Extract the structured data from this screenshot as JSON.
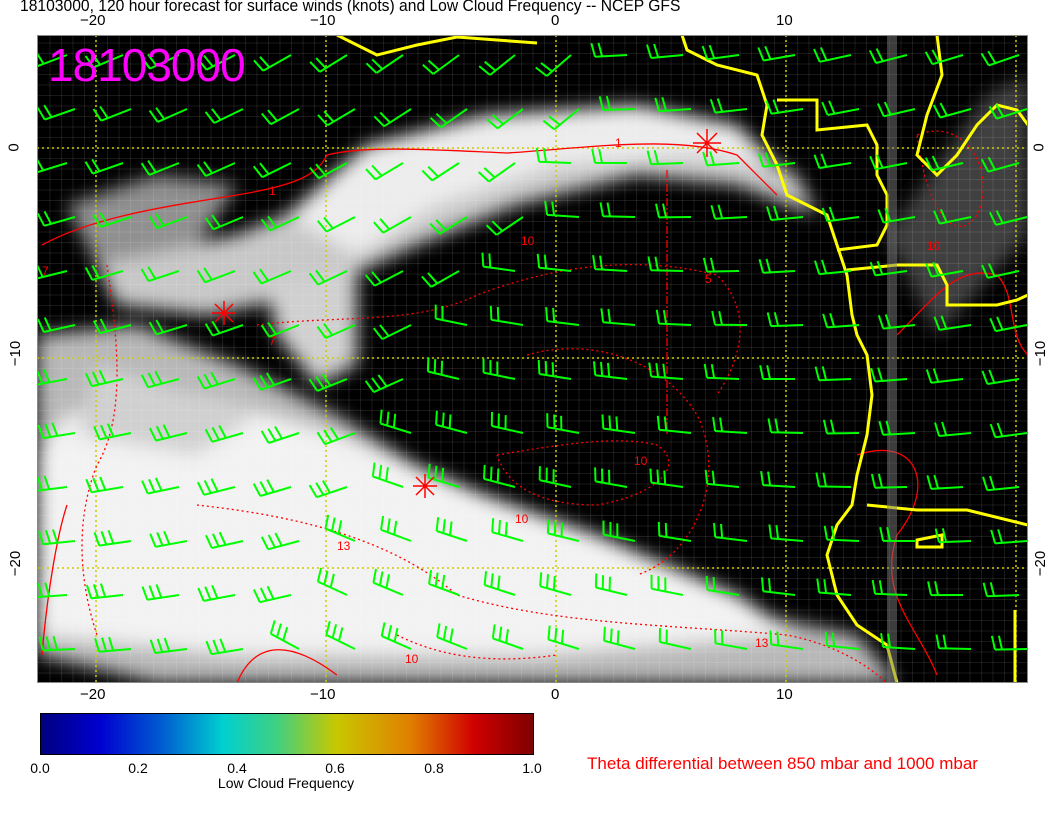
{
  "title": "18103000, 120 hour forecast for surface winds (knots) and Low Cloud Frequency -- NCEP GFS",
  "stamp": "18103000",
  "axes": {
    "lon_ticks": [
      "−20",
      "−10",
      "0",
      "10"
    ],
    "lat_ticks": [
      "0",
      "−10",
      "−20"
    ]
  },
  "contour_labels": [
    "1",
    "1",
    "10",
    "10",
    "13",
    "13",
    "10",
    "10",
    "10",
    "7",
    "5",
    "7"
  ],
  "colorbar": {
    "ticks": [
      "0.0",
      "0.2",
      "0.4",
      "0.6",
      "0.8",
      "1.0"
    ],
    "label": "Low Cloud Frequency",
    "colors": [
      "#00007f",
      "#0000d0",
      "#00d0d0",
      "#c8c800",
      "#d00000",
      "#7f0000"
    ]
  },
  "theta_label": "Theta differential between 850 mbar and 1000 mbar",
  "colors": {
    "wind_barbs": "#00ff00",
    "coastline": "#ffff00",
    "contours": "#ff0000",
    "stamp": "#ff00ff",
    "grid": "#cccc00"
  }
}
